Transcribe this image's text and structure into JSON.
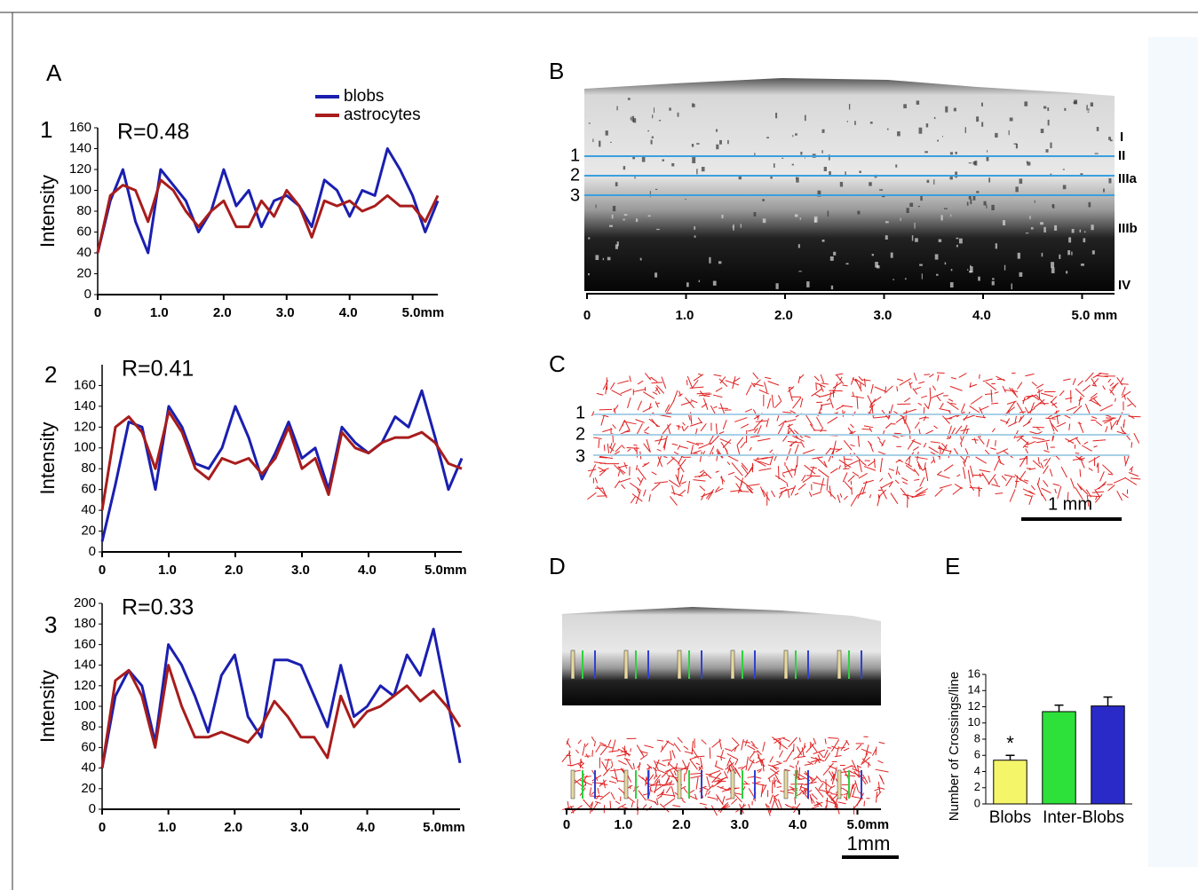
{
  "panels": {
    "A": {
      "label": "A",
      "rows": [
        "1",
        "2",
        "3"
      ]
    },
    "B": {
      "label": "B",
      "lines": [
        "1",
        "2",
        "3"
      ],
      "layers": [
        "I",
        "II",
        "IIIa",
        "IIIb",
        "IV"
      ],
      "axis": [
        "0",
        "1.0",
        "2.0",
        "3.0",
        "4.0",
        "5.0 mm"
      ]
    },
    "C": {
      "label": "C",
      "lines": [
        "1",
        "2",
        "3"
      ],
      "scale": "1 mm"
    },
    "D": {
      "label": "D",
      "axis": [
        "0",
        "1.0",
        "2.0",
        "3.0",
        "4.0",
        "5.0mm"
      ],
      "scale": "1mm"
    },
    "E": {
      "label": "E"
    }
  },
  "chart_data": [
    {
      "type": "line",
      "title": "R=0.48",
      "y_label": "Intensity",
      "legend": true,
      "x": [
        0,
        0.2,
        0.4,
        0.6,
        0.8,
        1.0,
        1.2,
        1.4,
        1.6,
        1.8,
        2.0,
        2.2,
        2.4,
        2.6,
        2.8,
        3.0,
        3.2,
        3.4,
        3.6,
        3.8,
        4.0,
        4.2,
        4.4,
        4.6,
        4.8,
        5.0,
        5.2,
        5.4
      ],
      "xlim": [
        0,
        5.4
      ],
      "xticks": [
        0,
        {
          "value": 1,
          "label": "1.0"
        },
        {
          "value": 2,
          "label": "2.0"
        },
        {
          "value": 3,
          "label": "3.0"
        },
        {
          "value": 4,
          "label": "4.0"
        },
        {
          "value": 5,
          "label": "5.0mm"
        }
      ],
      "ylim": [
        0,
        160
      ],
      "yticks": [
        0,
        20,
        40,
        60,
        80,
        100,
        120,
        140,
        160
      ],
      "series": [
        {
          "name": "blobs",
          "color": "#1a1fb0",
          "values": [
            40,
            90,
            120,
            70,
            40,
            120,
            105,
            90,
            60,
            80,
            120,
            85,
            100,
            65,
            90,
            95,
            85,
            65,
            110,
            100,
            75,
            100,
            95,
            140,
            120,
            95,
            60,
            90
          ]
        },
        {
          "name": "astrocytes",
          "color": "#a81c1c",
          "values": [
            40,
            95,
            105,
            100,
            70,
            110,
            100,
            80,
            65,
            80,
            90,
            65,
            65,
            90,
            75,
            100,
            85,
            55,
            90,
            85,
            90,
            80,
            85,
            95,
            85,
            85,
            70,
            95
          ]
        }
      ]
    },
    {
      "type": "line",
      "title": "R=0.41",
      "y_label": "Intensity",
      "x": [
        0,
        0.2,
        0.4,
        0.6,
        0.8,
        1.0,
        1.2,
        1.4,
        1.6,
        1.8,
        2.0,
        2.2,
        2.4,
        2.6,
        2.8,
        3.0,
        3.2,
        3.4,
        3.6,
        3.8,
        4.0,
        4.2,
        4.4,
        4.6,
        4.8,
        5.0,
        5.2,
        5.4
      ],
      "xlim": [
        0,
        5.4
      ],
      "xticks": [
        0,
        {
          "value": 1,
          "label": "1.0"
        },
        {
          "value": 2,
          "label": "2.0"
        },
        {
          "value": 3,
          "label": "3.0"
        },
        {
          "value": 4,
          "label": "4.0"
        },
        {
          "value": 5,
          "label": "5.0mm"
        }
      ],
      "ylim": [
        0,
        180
      ],
      "yticks": [
        0,
        20,
        40,
        60,
        80,
        100,
        120,
        140,
        160
      ],
      "series": [
        {
          "color": "#1a1fb0",
          "values": [
            10,
            65,
            125,
            120,
            60,
            140,
            120,
            85,
            80,
            100,
            140,
            110,
            70,
            95,
            125,
            90,
            100,
            60,
            120,
            105,
            95,
            105,
            130,
            120,
            155,
            110,
            60,
            90
          ]
        },
        {
          "color": "#a81c1c",
          "values": [
            40,
            120,
            130,
            115,
            80,
            135,
            115,
            80,
            70,
            90,
            85,
            90,
            75,
            90,
            120,
            80,
            90,
            55,
            115,
            100,
            95,
            105,
            110,
            110,
            115,
            105,
            85,
            80
          ]
        }
      ]
    },
    {
      "type": "line",
      "title": "R=0.33",
      "y_label": "Intensity",
      "x": [
        0,
        0.2,
        0.4,
        0.6,
        0.8,
        1.0,
        1.2,
        1.4,
        1.6,
        1.8,
        2.0,
        2.2,
        2.4,
        2.6,
        2.8,
        3.0,
        3.2,
        3.4,
        3.6,
        3.8,
        4.0,
        4.2,
        4.4,
        4.6,
        4.8,
        5.0,
        5.2,
        5.4
      ],
      "xlim": [
        0,
        5.4
      ],
      "xticks": [
        0,
        {
          "value": 1,
          "label": "1.0"
        },
        {
          "value": 2,
          "label": "2.0"
        },
        {
          "value": 3,
          "label": "3.0"
        },
        {
          "value": 4,
          "label": "4.0"
        },
        {
          "value": 5,
          "label": "5.0mm"
        }
      ],
      "ylim": [
        0,
        200
      ],
      "yticks": [
        0,
        20,
        40,
        60,
        80,
        100,
        120,
        140,
        160,
        180,
        200
      ],
      "series": [
        {
          "color": "#1a1fb0",
          "values": [
            40,
            110,
            135,
            120,
            65,
            160,
            140,
            110,
            75,
            130,
            150,
            90,
            70,
            145,
            145,
            140,
            110,
            80,
            140,
            90,
            100,
            120,
            110,
            150,
            130,
            175,
            110,
            45
          ]
        },
        {
          "color": "#a81c1c",
          "values": [
            40,
            125,
            135,
            110,
            60,
            140,
            100,
            70,
            70,
            75,
            70,
            65,
            80,
            105,
            90,
            70,
            70,
            50,
            110,
            80,
            95,
            100,
            110,
            120,
            105,
            115,
            100,
            80
          ]
        }
      ]
    },
    {
      "type": "bar",
      "y_label": "Number of Crossings/line",
      "annotation": "*",
      "categories": [
        "Blobs",
        "Inter-Blobs",
        null
      ],
      "values": [
        5.4,
        11.4,
        12.1
      ],
      "errors": [
        0.6,
        0.8,
        1.1
      ],
      "colors": [
        "#f5f56a",
        "#2ee03a",
        "#2a2ac8"
      ],
      "ylim": [
        0,
        16
      ],
      "yticks": [
        0,
        2,
        4,
        6,
        8,
        10,
        12,
        14,
        16
      ]
    }
  ]
}
